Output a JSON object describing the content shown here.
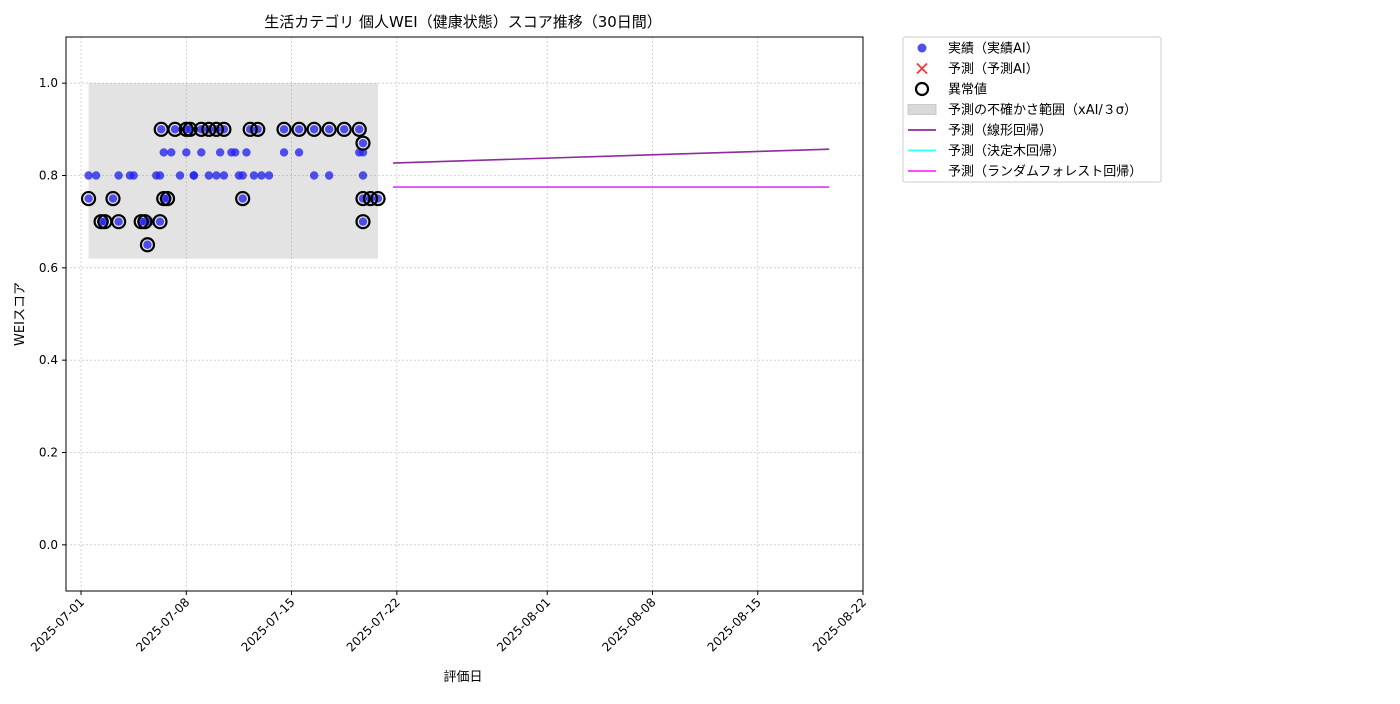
{
  "chart_data": {
    "type": "scatter",
    "title": "生活カテゴリ 個人WEI（健康状態）スコア推移（30日間）",
    "xlabel": "評価日",
    "ylabel": "WEIスコア",
    "xlim": [
      "2025-06-30",
      "2025-08-22"
    ],
    "ylim": [
      -0.1,
      1.1
    ],
    "x_ticks": [
      "2025-07-01",
      "2025-07-08",
      "2025-07-15",
      "2025-07-22",
      "2025-08-01",
      "2025-08-08",
      "2025-08-15",
      "2025-08-22"
    ],
    "y_ticks": [
      "0.0",
      "0.2",
      "0.4",
      "0.6",
      "0.8",
      "1.0"
    ],
    "grid": true,
    "legend_position": "outside-right",
    "legend": [
      {
        "label": "実績（実績AI）",
        "kind": "dot",
        "color": "#2222ee"
      },
      {
        "label": "予測（予測AI）",
        "kind": "cross",
        "color": "#ff3333"
      },
      {
        "label": "異常値",
        "kind": "ring",
        "color": "#000000"
      },
      {
        "label": "予測の不確かさ範囲（xAI/３σ）",
        "kind": "band",
        "color": "#d9d9d9"
      },
      {
        "label": "予測（線形回帰）",
        "kind": "line",
        "color": "#8e2a9e"
      },
      {
        "label": "予測（決定木回帰）",
        "kind": "line",
        "color": "#33ffff"
      },
      {
        "label": "予測（ランダムフォレスト回帰）",
        "kind": "line",
        "color": "#ff33ff"
      }
    ],
    "band": {
      "x": [
        "2025-07-01 12:00",
        "2025-07-20 18:00"
      ],
      "y": [
        0.62,
        1.0
      ]
    },
    "actual_points": [
      [
        "2025-07-01 12:00",
        0.8
      ],
      [
        "2025-07-02 00:00",
        0.8
      ],
      [
        "2025-07-01 12:00",
        0.75
      ],
      [
        "2025-07-02 08:00",
        0.7
      ],
      [
        "2025-07-02 14:00",
        0.7
      ],
      [
        "2025-07-03 03:00",
        0.75
      ],
      [
        "2025-07-03 12:00",
        0.8
      ],
      [
        "2025-07-03 12:00",
        0.7
      ],
      [
        "2025-07-04 06:00",
        0.8
      ],
      [
        "2025-07-04 12:00",
        0.8
      ],
      [
        "2025-07-05 00:00",
        0.7
      ],
      [
        "2025-07-05 06:00",
        0.7
      ],
      [
        "2025-07-05 10:00",
        0.65
      ],
      [
        "2025-07-05 14:00",
        0.7
      ],
      [
        "2025-07-06 00:00",
        0.8
      ],
      [
        "2025-07-06 06:00",
        0.8
      ],
      [
        "2025-07-06 06:00",
        0.7
      ],
      [
        "2025-07-06 08:00",
        0.9
      ],
      [
        "2025-07-06 12:00",
        0.75
      ],
      [
        "2025-07-06 12:00",
        0.85
      ],
      [
        "2025-07-06 18:00",
        0.75
      ],
      [
        "2025-07-07 00:00",
        0.85
      ],
      [
        "2025-07-07 06:00",
        0.9
      ],
      [
        "2025-07-07 14:00",
        0.8
      ],
      [
        "2025-07-08 00:00",
        0.85
      ],
      [
        "2025-07-08 00:00",
        0.9
      ],
      [
        "2025-07-08 06:00",
        0.9
      ],
      [
        "2025-07-08 12:00",
        0.8
      ],
      [
        "2025-07-08 12:00",
        0.8
      ],
      [
        "2025-07-09 00:00",
        0.85
      ],
      [
        "2025-07-09 00:00",
        0.9
      ],
      [
        "2025-07-09 12:00",
        0.8
      ],
      [
        "2025-07-09 12:00",
        0.9
      ],
      [
        "2025-07-10 00:00",
        0.8
      ],
      [
        "2025-07-10 00:00",
        0.9
      ],
      [
        "2025-07-10 06:00",
        0.85
      ],
      [
        "2025-07-10 12:00",
        0.9
      ],
      [
        "2025-07-10 12:00",
        0.8
      ],
      [
        "2025-07-11 00:00",
        0.85
      ],
      [
        "2025-07-11 06:00",
        0.85
      ],
      [
        "2025-07-11 12:00",
        0.8
      ],
      [
        "2025-07-11 18:00",
        0.75
      ],
      [
        "2025-07-11 18:00",
        0.8
      ],
      [
        "2025-07-12 00:00",
        0.85
      ],
      [
        "2025-07-12 06:00",
        0.9
      ],
      [
        "2025-07-12 12:00",
        0.8
      ],
      [
        "2025-07-12 18:00",
        0.9
      ],
      [
        "2025-07-13 00:00",
        0.8
      ],
      [
        "2025-07-13 12:00",
        0.8
      ],
      [
        "2025-07-14 12:00",
        0.9
      ],
      [
        "2025-07-14 12:00",
        0.85
      ],
      [
        "2025-07-15 12:00",
        0.85
      ],
      [
        "2025-07-15 12:00",
        0.9
      ],
      [
        "2025-07-16 12:00",
        0.8
      ],
      [
        "2025-07-16 12:00",
        0.9
      ],
      [
        "2025-07-17 12:00",
        0.8
      ],
      [
        "2025-07-17 12:00",
        0.9
      ],
      [
        "2025-07-18 12:00",
        0.9
      ],
      [
        "2025-07-19 12:00",
        0.85
      ],
      [
        "2025-07-19 12:00",
        0.9
      ],
      [
        "2025-07-19 18:00",
        0.8
      ],
      [
        "2025-07-19 18:00",
        0.85
      ],
      [
        "2025-07-19 18:00",
        0.87
      ],
      [
        "2025-07-19 18:00",
        0.75
      ],
      [
        "2025-07-19 18:00",
        0.7
      ],
      [
        "2025-07-20 06:00",
        0.75
      ],
      [
        "2025-07-20 18:00",
        0.75
      ]
    ],
    "anomaly_points": [
      [
        "2025-07-01 12:00",
        0.75
      ],
      [
        "2025-07-02 08:00",
        0.7
      ],
      [
        "2025-07-02 14:00",
        0.7
      ],
      [
        "2025-07-03 03:00",
        0.75
      ],
      [
        "2025-07-03 12:00",
        0.7
      ],
      [
        "2025-07-05 00:00",
        0.7
      ],
      [
        "2025-07-05 06:00",
        0.7
      ],
      [
        "2025-07-05 10:00",
        0.65
      ],
      [
        "2025-07-06 06:00",
        0.7
      ],
      [
        "2025-07-06 08:00",
        0.9
      ],
      [
        "2025-07-06 12:00",
        0.75
      ],
      [
        "2025-07-06 18:00",
        0.75
      ],
      [
        "2025-07-07 06:00",
        0.9
      ],
      [
        "2025-07-08 00:00",
        0.9
      ],
      [
        "2025-07-08 06:00",
        0.9
      ],
      [
        "2025-07-09 00:00",
        0.9
      ],
      [
        "2025-07-09 12:00",
        0.9
      ],
      [
        "2025-07-10 00:00",
        0.9
      ],
      [
        "2025-07-10 12:00",
        0.9
      ],
      [
        "2025-07-11 18:00",
        0.75
      ],
      [
        "2025-07-12 06:00",
        0.9
      ],
      [
        "2025-07-12 18:00",
        0.9
      ],
      [
        "2025-07-14 12:00",
        0.9
      ],
      [
        "2025-07-15 12:00",
        0.9
      ],
      [
        "2025-07-16 12:00",
        0.9
      ],
      [
        "2025-07-17 12:00",
        0.9
      ],
      [
        "2025-07-18 12:00",
        0.9
      ],
      [
        "2025-07-19 12:00",
        0.9
      ],
      [
        "2025-07-19 18:00",
        0.87
      ],
      [
        "2025-07-19 18:00",
        0.75
      ],
      [
        "2025-07-19 18:00",
        0.7
      ],
      [
        "2025-07-20 06:00",
        0.75
      ],
      [
        "2025-07-20 18:00",
        0.75
      ]
    ],
    "series": [
      {
        "name": "予測（線形回帰）",
        "color": "#8e2a9e",
        "x": [
          "2025-07-21 18:00",
          "2025-08-19 18:00"
        ],
        "y": [
          0.827,
          0.857
        ]
      },
      {
        "name": "予測（決定木回帰）",
        "color": "#33ffff",
        "x": [
          "2025-07-21 18:00",
          "2025-08-19 18:00"
        ],
        "y": [
          0.775,
          0.775
        ]
      },
      {
        "name": "予測（ランダムフォレスト回帰）",
        "color": "#ff33ff",
        "x": [
          "2025-07-21 18:00",
          "2025-08-19 18:00"
        ],
        "y": [
          0.775,
          0.775
        ]
      }
    ]
  }
}
